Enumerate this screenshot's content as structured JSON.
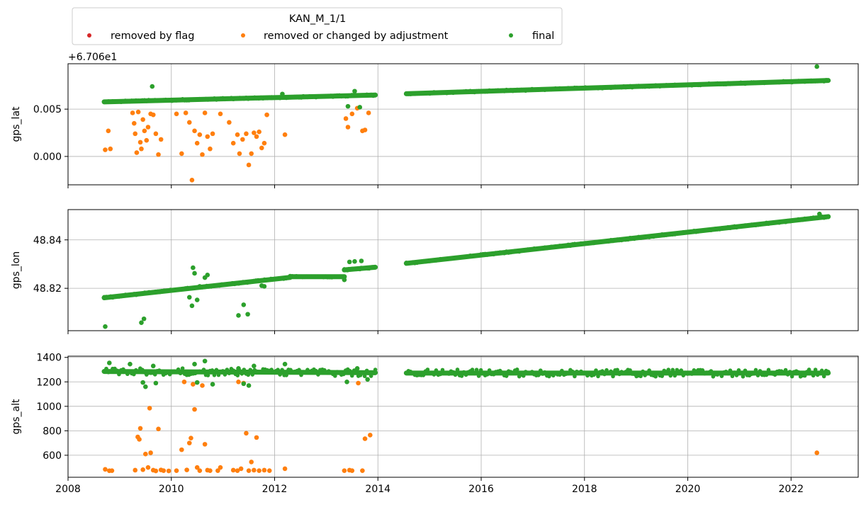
{
  "legend": {
    "title": "KAN_M_1/1",
    "entries": [
      {
        "label": "removed by flag",
        "color": "#d62728"
      },
      {
        "label": "removed or changed by adjustment",
        "color": "#ff7f0e"
      },
      {
        "label": "final",
        "color": "#2ca02c"
      }
    ]
  },
  "chart_data": [
    {
      "type": "scatter",
      "ylabel": "gps_lat",
      "offset_text": "+6.706e1",
      "xlim": [
        2008.0,
        2023.3
      ],
      "ylim": [
        -0.003,
        0.0098
      ],
      "yticks": [
        {
          "value": 0.0,
          "label": "0.000"
        },
        {
          "value": 0.005,
          "label": "0.005"
        }
      ],
      "xticks": [
        2008,
        2010,
        2012,
        2014,
        2016,
        2018,
        2020,
        2022
      ],
      "grid": true,
      "series": [
        {
          "name": "removed or changed by adjustment",
          "color": "#ff7f0e",
          "points": [
            [
              2008.72,
              0.0007
            ],
            [
              2008.78,
              0.0027
            ],
            [
              2008.82,
              0.0008
            ],
            [
              2009.25,
              0.0046
            ],
            [
              2009.28,
              0.0035
            ],
            [
              2009.3,
              0.0024
            ],
            [
              2009.33,
              0.0004
            ],
            [
              2009.36,
              0.0047
            ],
            [
              2009.4,
              0.0015
            ],
            [
              2009.42,
              0.0008
            ],
            [
              2009.45,
              0.0039
            ],
            [
              2009.48,
              0.0027
            ],
            [
              2009.52,
              0.0017
            ],
            [
              2009.55,
              0.0031
            ],
            [
              2009.6,
              0.0045
            ],
            [
              2009.65,
              0.0044
            ],
            [
              2009.7,
              0.0024
            ],
            [
              2009.75,
              0.0002
            ],
            [
              2009.8,
              0.0018
            ],
            [
              2010.1,
              0.0045
            ],
            [
              2010.2,
              0.0003
            ],
            [
              2010.28,
              0.0046
            ],
            [
              2010.35,
              0.0036
            ],
            [
              2010.4,
              -0.0025
            ],
            [
              2010.45,
              0.0027
            ],
            [
              2010.5,
              0.0014
            ],
            [
              2010.55,
              0.0023
            ],
            [
              2010.6,
              0.0002
            ],
            [
              2010.65,
              0.0046
            ],
            [
              2010.7,
              0.0021
            ],
            [
              2010.75,
              0.0008
            ],
            [
              2010.8,
              0.0024
            ],
            [
              2010.95,
              0.0045
            ],
            [
              2011.12,
              0.0036
            ],
            [
              2011.2,
              0.0014
            ],
            [
              2011.28,
              0.0023
            ],
            [
              2011.32,
              0.0003
            ],
            [
              2011.38,
              0.0018
            ],
            [
              2011.45,
              0.0024
            ],
            [
              2011.5,
              -0.0009
            ],
            [
              2011.55,
              0.0003
            ],
            [
              2011.6,
              0.0025
            ],
            [
              2011.65,
              0.0021
            ],
            [
              2011.7,
              0.0026
            ],
            [
              2011.75,
              0.0009
            ],
            [
              2011.8,
              0.0014
            ],
            [
              2011.85,
              0.0044
            ],
            [
              2012.2,
              0.0023
            ],
            [
              2013.38,
              0.004
            ],
            [
              2013.42,
              0.0031
            ],
            [
              2013.5,
              0.0045
            ],
            [
              2013.6,
              0.0051
            ],
            [
              2013.7,
              0.0027
            ],
            [
              2013.75,
              0.0028
            ],
            [
              2013.82,
              0.0046
            ]
          ]
        },
        {
          "name": "final",
          "color": "#2ca02c",
          "segments": [
            [
              2008.7,
              0.00577,
              2013.95,
              0.00649
            ],
            [
              2014.55,
              0.00663,
              2022.72,
              0.00803
            ]
          ],
          "points": [
            [
              2009.63,
              0.0074
            ],
            [
              2013.42,
              0.0053
            ],
            [
              2013.55,
              0.0069
            ],
            [
              2013.65,
              0.0052
            ],
            [
              2012.15,
              0.0066
            ],
            [
              2022.5,
              0.0095
            ]
          ]
        }
      ]
    },
    {
      "type": "scatter",
      "ylabel": "gps_lon",
      "xlim": [
        2008.0,
        2023.3
      ],
      "ylim": [
        48.8025,
        48.8525
      ],
      "yticks": [
        {
          "value": 48.82,
          "label": "48.82"
        },
        {
          "value": 48.84,
          "label": "48.84"
        }
      ],
      "xticks": [
        2008,
        2010,
        2012,
        2014,
        2016,
        2018,
        2020,
        2022
      ],
      "grid": true,
      "series": [
        {
          "name": "final",
          "color": "#2ca02c",
          "segments": [
            [
              2008.7,
              48.8161,
              2012.3,
              48.8245
            ],
            [
              2012.3,
              48.8248,
              2013.35,
              48.8248
            ],
            [
              2013.35,
              48.8276,
              2013.95,
              48.8287
            ],
            [
              2014.55,
              48.8303,
              2022.72,
              48.8496
            ]
          ],
          "points": [
            [
              2008.72,
              48.8042
            ],
            [
              2009.42,
              48.8058
            ],
            [
              2009.47,
              48.8074
            ],
            [
              2010.35,
              48.8163
            ],
            [
              2010.4,
              48.8128
            ],
            [
              2010.42,
              48.8285
            ],
            [
              2010.45,
              48.8262
            ],
            [
              2010.5,
              48.8152
            ],
            [
              2010.55,
              48.8208
            ],
            [
              2010.65,
              48.8244
            ],
            [
              2010.7,
              48.8255
            ],
            [
              2011.3,
              48.8088
            ],
            [
              2011.4,
              48.8132
            ],
            [
              2011.48,
              48.8093
            ],
            [
              2011.75,
              48.8211
            ],
            [
              2011.8,
              48.8208
            ],
            [
              2013.35,
              48.8235
            ],
            [
              2013.45,
              48.8309
            ],
            [
              2013.55,
              48.8311
            ],
            [
              2013.68,
              48.8313
            ],
            [
              2022.55,
              48.8507
            ]
          ]
        }
      ]
    },
    {
      "type": "scatter",
      "ylabel": "gps_alt",
      "xlim": [
        2008.0,
        2023.3
      ],
      "ylim": [
        420,
        1410
      ],
      "yticks": [
        {
          "value": 600,
          "label": "600"
        },
        {
          "value": 800,
          "label": "800"
        },
        {
          "value": 1000,
          "label": "1000"
        },
        {
          "value": 1200,
          "label": "1200"
        },
        {
          "value": 1400,
          "label": "1400"
        }
      ],
      "xticks": [
        2008,
        2010,
        2012,
        2014,
        2016,
        2018,
        2020,
        2022
      ],
      "grid": true,
      "series": [
        {
          "name": "removed or changed by adjustment",
          "color": "#ff7f0e",
          "points": [
            [
              2008.72,
              485
            ],
            [
              2008.8,
              473
            ],
            [
              2008.85,
              474
            ],
            [
              2009.3,
              478
            ],
            [
              2009.35,
              750
            ],
            [
              2009.38,
              730
            ],
            [
              2009.4,
              820
            ],
            [
              2009.45,
              482
            ],
            [
              2009.5,
              610
            ],
            [
              2009.55,
              500
            ],
            [
              2009.58,
              985
            ],
            [
              2009.6,
              620
            ],
            [
              2009.65,
              478
            ],
            [
              2009.7,
              472
            ],
            [
              2009.75,
              815
            ],
            [
              2009.8,
              480
            ],
            [
              2009.85,
              474
            ],
            [
              2009.95,
              472
            ],
            [
              2010.1,
              474
            ],
            [
              2010.2,
              645
            ],
            [
              2010.25,
              1200
            ],
            [
              2010.3,
              480
            ],
            [
              2010.35,
              700
            ],
            [
              2010.38,
              740
            ],
            [
              2010.42,
              1180
            ],
            [
              2010.45,
              975
            ],
            [
              2010.5,
              500
            ],
            [
              2010.55,
              474
            ],
            [
              2010.6,
              1170
            ],
            [
              2010.65,
              690
            ],
            [
              2010.7,
              478
            ],
            [
              2010.75,
              474
            ],
            [
              2010.9,
              474
            ],
            [
              2010.95,
              500
            ],
            [
              2011.2,
              478
            ],
            [
              2011.28,
              474
            ],
            [
              2011.3,
              1200
            ],
            [
              2011.35,
              490
            ],
            [
              2011.4,
              1190
            ],
            [
              2011.45,
              780
            ],
            [
              2011.5,
              474
            ],
            [
              2011.55,
              545
            ],
            [
              2011.6,
              478
            ],
            [
              2011.65,
              745
            ],
            [
              2011.7,
              474
            ],
            [
              2011.8,
              478
            ],
            [
              2011.9,
              474
            ],
            [
              2012.2,
              490
            ],
            [
              2013.35,
              474
            ],
            [
              2013.45,
              478
            ],
            [
              2013.5,
              474
            ],
            [
              2013.62,
              1190
            ],
            [
              2013.7,
              474
            ],
            [
              2013.75,
              735
            ],
            [
              2013.85,
              765
            ],
            [
              2022.5,
              620
            ]
          ]
        },
        {
          "name": "final",
          "color": "#2ca02c",
          "segments": [
            [
              2008.7,
              1285,
              2013.95,
              1275
            ],
            [
              2014.55,
              1272,
              2022.72,
              1272
            ]
          ],
          "points": [
            [
              2008.8,
              1355
            ],
            [
              2009.2,
              1345
            ],
            [
              2009.45,
              1195
            ],
            [
              2009.5,
              1160
            ],
            [
              2009.65,
              1330
            ],
            [
              2009.7,
              1190
            ],
            [
              2010.45,
              1345
            ],
            [
              2010.5,
              1195
            ],
            [
              2010.65,
              1370
            ],
            [
              2010.8,
              1180
            ],
            [
              2011.3,
              1310
            ],
            [
              2011.4,
              1185
            ],
            [
              2011.5,
              1170
            ],
            [
              2011.6,
              1330
            ],
            [
              2012.2,
              1345
            ],
            [
              2013.4,
              1200
            ],
            [
              2013.6,
              1310
            ],
            [
              2013.8,
              1220
            ]
          ]
        }
      ]
    }
  ]
}
